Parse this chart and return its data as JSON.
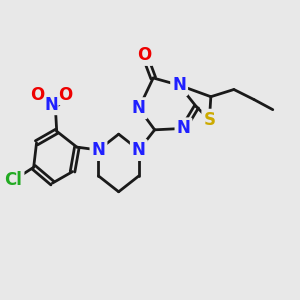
{
  "bg": "#e8e8e8",
  "bond_color": "#1a1a1a",
  "colors": {
    "N": "#2020ff",
    "O": "#ee0000",
    "S": "#ccaa00",
    "Cl": "#22aa22",
    "C": "#1a1a1a"
  },
  "lw": 2.0,
  "fs": 12,
  "fs2": 9.5
}
